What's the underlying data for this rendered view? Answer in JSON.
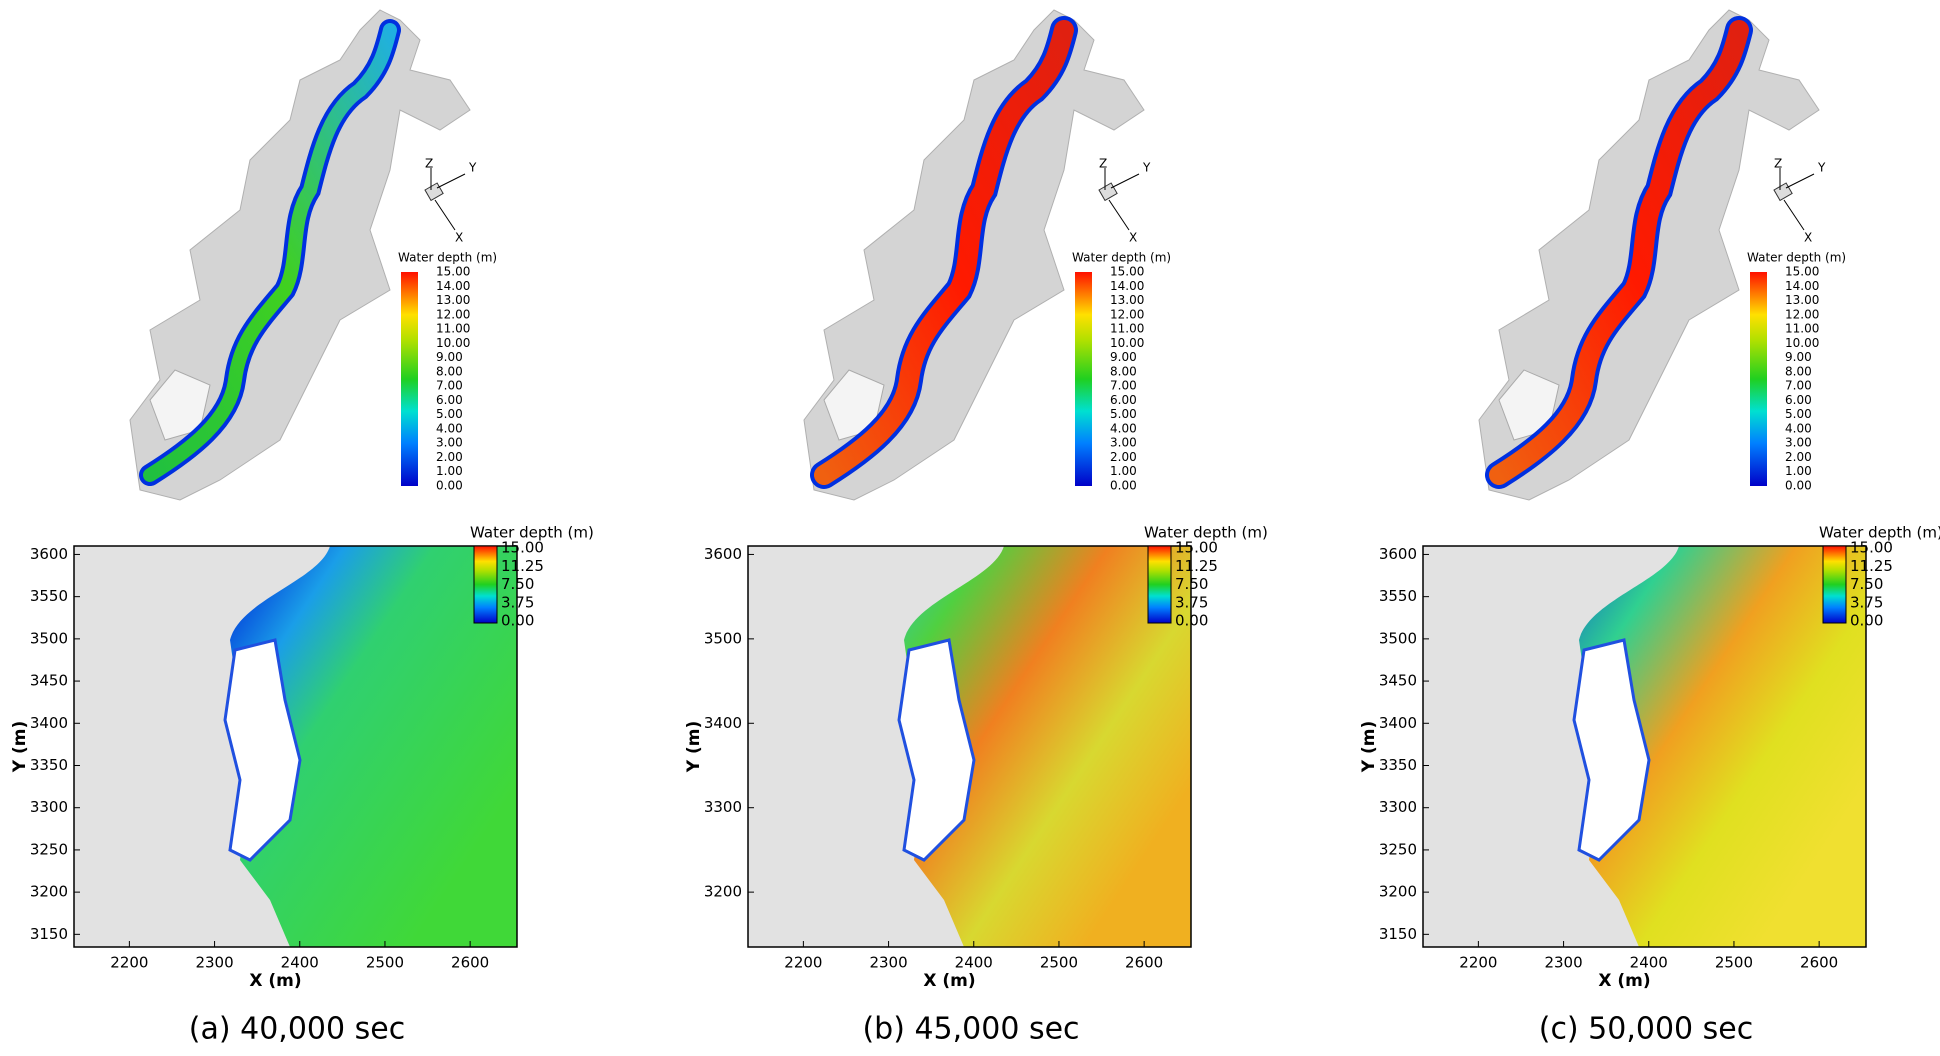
{
  "panels": [
    {
      "caption": "(a) 40,000 sec",
      "top": {
        "triad": [
          "Z",
          "Y",
          "X"
        ],
        "legend_title": "Water depth (m)",
        "legend_labels": [
          "15.00",
          "14.00",
          "13.00",
          "12.00",
          "11.00",
          "10.00",
          "9.00",
          "8.00",
          "7.00",
          "6.00",
          "5.00",
          "4.00",
          "3.00",
          "2.00",
          "1.00",
          "0.00"
        ]
      },
      "map": {
        "xlabel": "X (m)",
        "ylabel": "Y (m)",
        "xlim": [
          2135,
          2655
        ],
        "ylim": [
          3135,
          3610
        ],
        "xticks": [
          2200,
          2300,
          2400,
          2500,
          2600
        ],
        "yticks": [
          3150,
          3200,
          3250,
          3300,
          3350,
          3400,
          3450,
          3500,
          3550,
          3600
        ],
        "legend_title": "Water depth (m)",
        "legend_labels": [
          "15.00",
          "11.25",
          "7.50",
          "3.75",
          "0.00"
        ]
      }
    },
    {
      "caption": "(b) 45,000 sec",
      "top": {
        "triad": [
          "Z",
          "Y",
          "X"
        ],
        "legend_title": "Water depth (m)",
        "legend_labels": [
          "15.00",
          "14.00",
          "13.00",
          "12.00",
          "11.00",
          "10.00",
          "9.00",
          "8.00",
          "7.00",
          "6.00",
          "5.00",
          "4.00",
          "3.00",
          "2.00",
          "1.00",
          "0.00"
        ]
      },
      "map": {
        "xlabel": "X (m)",
        "ylabel": "Y (m)",
        "xlim": [
          2135,
          2655
        ],
        "ylim": [
          3135,
          3610
        ],
        "xticks": [
          2200,
          2300,
          2400,
          2500,
          2600
        ],
        "yticks": [
          3200,
          3300,
          3400,
          3500,
          3600
        ],
        "legend_title": "Water depth (m)",
        "legend_labels": [
          "15.00",
          "11.25",
          "7.50",
          "3.75",
          "0.00"
        ]
      }
    },
    {
      "caption": "(c) 50,000 sec",
      "top": {
        "triad": [
          "Z",
          "Y",
          "X"
        ],
        "legend_title": "Water depth (m)",
        "legend_labels": [
          "15.00",
          "14.00",
          "13.00",
          "12.00",
          "11.00",
          "10.00",
          "9.00",
          "8.00",
          "7.00",
          "6.00",
          "5.00",
          "4.00",
          "3.00",
          "2.00",
          "1.00",
          "0.00"
        ]
      },
      "map": {
        "xlabel": "X (m)",
        "ylabel": "Y (m)",
        "xlim": [
          2135,
          2655
        ],
        "ylim": [
          3135,
          3610
        ],
        "xticks": [
          2200,
          2300,
          2400,
          2500,
          2600
        ],
        "yticks": [
          3150,
          3200,
          3250,
          3300,
          3350,
          3400,
          3450,
          3500,
          3550,
          3600
        ],
        "legend_title": "Water depth (m)",
        "legend_labels": [
          "15.00",
          "11.25",
          "7.50",
          "3.75",
          "0.00"
        ]
      }
    }
  ]
}
